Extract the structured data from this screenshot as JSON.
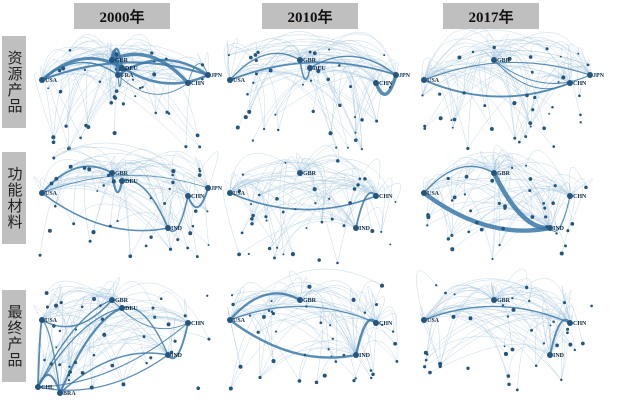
{
  "columns": [
    "2000年",
    "2010年",
    "2017年"
  ],
  "rows": [
    "资源产品",
    "功能材料",
    "最终产品"
  ],
  "panels": [
    [
      {
        "labels": [
          "GBR",
          "DEU",
          "FRA",
          "USA",
          "CHN",
          "JPN"
        ],
        "weight": 2
      },
      {
        "labels": [
          "GBR",
          "DEU",
          "USA",
          "CHN",
          "JPN"
        ],
        "weight": 2
      },
      {
        "labels": [
          "GBR",
          "USA",
          "CHN",
          "JPN"
        ],
        "weight": 3
      }
    ],
    [
      {
        "labels": [
          "GBR",
          "DEU",
          "USA",
          "CHN",
          "JPN",
          "IND"
        ],
        "weight": 1
      },
      {
        "labels": [
          "GBR",
          "USA",
          "CHN",
          "IND"
        ],
        "weight": 2
      },
      {
        "labels": [
          "GBR",
          "USA",
          "CHN",
          "IND"
        ],
        "weight": 3
      }
    ],
    [
      {
        "labels": [
          "USA",
          "GBR",
          "DEU",
          "CHN",
          "IND",
          "CHL",
          "BRA"
        ],
        "weight": 1
      },
      {
        "labels": [
          "GBR",
          "USA",
          "CHN",
          "IND"
        ],
        "weight": 2
      },
      {
        "labels": [
          "GBR",
          "USA",
          "CHN",
          "IND"
        ],
        "weight": 2
      }
    ]
  ],
  "colors": {
    "edge_strong": "#3a78a8",
    "edge_light": "#a9c9e0",
    "node": "#23557f",
    "header_bg": "#bfbfbf"
  }
}
